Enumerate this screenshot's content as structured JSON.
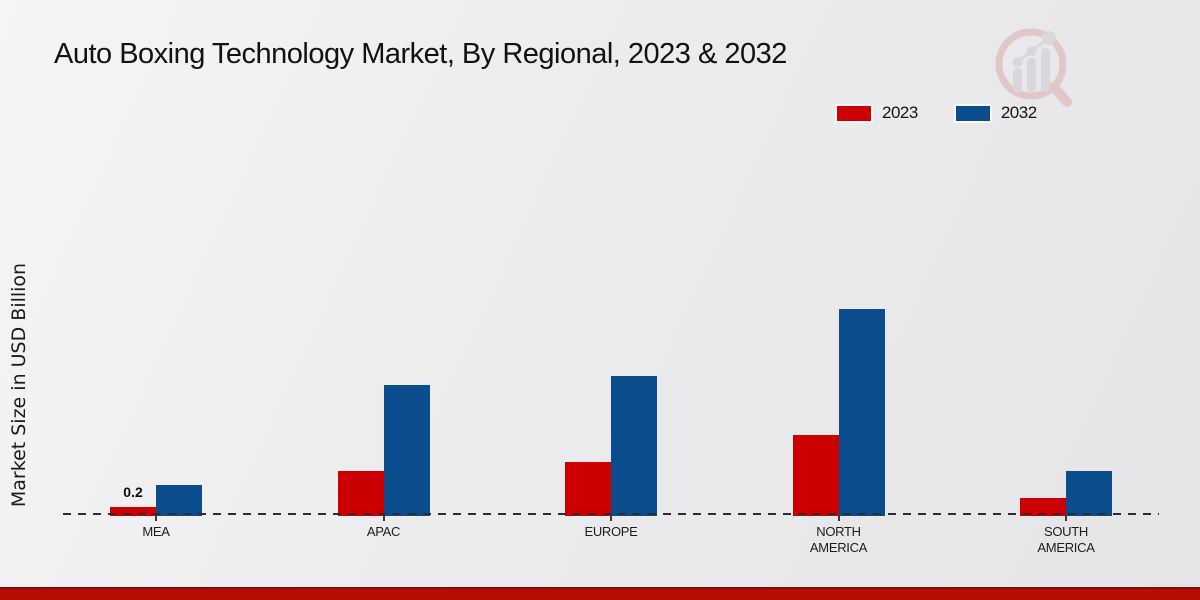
{
  "title": "Auto Boxing Technology Market, By Regional, 2023 & 2032",
  "ylabel": "Market Size in USD Billion",
  "colors": {
    "series_2023": "#cc0000",
    "series_2032": "#0b4d8c",
    "axis_line": "#2d2d2d",
    "footer_band": "#b70c04",
    "background": "#ececee"
  },
  "legend": {
    "position": "top-right",
    "items": [
      {
        "label": "2023",
        "color": "#cc0000"
      },
      {
        "label": "2032",
        "color": "#0b4d8c"
      }
    ]
  },
  "watermark": {
    "name": "magnifier-bar-chart-logo"
  },
  "chart_data": {
    "type": "bar",
    "title": "Auto Boxing Technology Market, By Regional, 2023 & 2032",
    "xlabel": "",
    "ylabel": "Market Size in USD Billion",
    "categories": [
      "MEA",
      "APAC",
      "EUROPE",
      "NORTH AMERICA",
      "SOUTH AMERICA"
    ],
    "series": [
      {
        "name": "2023",
        "color": "#cc0000",
        "values": [
          0.2,
          1.0,
          1.2,
          1.8,
          0.4
        ]
      },
      {
        "name": "2032",
        "color": "#0b4d8c",
        "values": [
          0.7,
          2.9,
          3.1,
          4.6,
          1.0
        ]
      }
    ],
    "annotations": [
      {
        "series_index": 0,
        "category_index": 0,
        "text": "0.2"
      }
    ],
    "ylim": [
      0,
      5
    ],
    "grid": false,
    "baseline_style": "dashed",
    "legend_position": "top-right"
  }
}
